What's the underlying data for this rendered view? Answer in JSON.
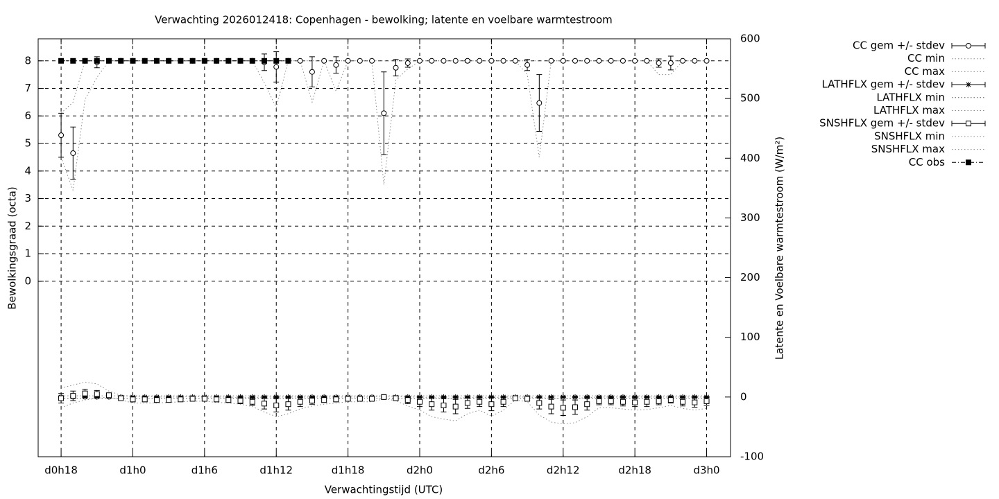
{
  "chart_data": {
    "type": "line",
    "title": "Verwachting 2026012418: Copenhagen - bewolking; latente en voelbare warmtestroom",
    "xlabel": "Verwachtingstijd (UTC)",
    "ylabel": "Bewolkingsgraad (octa)",
    "y2label": "Latente en Voelbare warmtestroom (W/m²)",
    "grid": true,
    "legend": "outside-right",
    "x": [
      18,
      19,
      20,
      21,
      22,
      23,
      24,
      25,
      26,
      27,
      28,
      29,
      30,
      31,
      32,
      33,
      34,
      35,
      36,
      37,
      38,
      39,
      40,
      41,
      42,
      43,
      44,
      45,
      46,
      47,
      48,
      49,
      50,
      51,
      52,
      53,
      54,
      55,
      56,
      57,
      58,
      59,
      60,
      61,
      62,
      63,
      64,
      65,
      66,
      67,
      68,
      69,
      70,
      71,
      72
    ],
    "xlim": [
      16.08,
      74
    ],
    "xticks": [
      {
        "value": 18,
        "label": "d0h18"
      },
      {
        "value": 24,
        "label": "d1h0"
      },
      {
        "value": 30,
        "label": "d1h6"
      },
      {
        "value": 36,
        "label": "d1h12"
      },
      {
        "value": 42,
        "label": "d1h18"
      },
      {
        "value": 48,
        "label": "d2h0"
      },
      {
        "value": 54,
        "label": "d2h6"
      },
      {
        "value": 60,
        "label": "d2h12"
      },
      {
        "value": 66,
        "label": "d2h18"
      },
      {
        "value": 72,
        "label": "d3h0"
      }
    ],
    "ylim": [
      -6.37,
      8.8
    ],
    "yticks": [
      0,
      1,
      2,
      3,
      4,
      5,
      6,
      7,
      8
    ],
    "y2lim": [
      -100,
      600
    ],
    "y2ticks": [
      -100,
      0,
      100,
      200,
      300,
      400,
      500,
      600
    ],
    "series": [
      {
        "name": "CC gem +/- stdev",
        "color": "#000000",
        "style": "errorbars",
        "marker": "circle",
        "values": [
          5.3,
          4.65,
          8,
          7.95,
          8,
          8,
          8,
          8,
          8,
          8,
          8,
          8,
          8,
          8,
          8,
          8,
          8,
          7.95,
          7.78,
          8,
          8,
          7.6,
          8,
          7.85,
          8,
          8,
          8,
          6.1,
          7.75,
          7.92,
          8,
          8,
          8,
          8,
          8,
          8,
          8,
          8,
          8,
          7.85,
          6.47,
          8,
          8,
          8,
          8,
          8,
          8,
          8,
          8,
          8,
          7.92,
          7.92,
          8,
          8,
          8
        ],
        "errors": [
          0.8,
          0.95,
          0,
          0.2,
          0,
          0,
          0,
          0,
          0,
          0,
          0,
          0,
          0,
          0,
          0,
          0,
          0,
          0.3,
          0.55,
          0,
          0,
          0.55,
          0,
          0.3,
          0,
          0,
          0,
          1.5,
          0.3,
          0.15,
          0,
          0,
          0,
          0,
          0.05,
          0,
          0,
          0,
          0,
          0.2,
          1.03,
          0,
          0,
          0,
          0,
          0,
          0,
          0,
          0,
          0,
          0.15,
          0.25,
          0,
          0,
          0
        ]
      },
      {
        "name": "CC min",
        "color": "#888888",
        "style": "dotted",
        "values": [
          4.5,
          3.3,
          6.6,
          7.4,
          8,
          8,
          8,
          8,
          8,
          8,
          8,
          8,
          8,
          8,
          8,
          8,
          8,
          7.2,
          6.3,
          8,
          8,
          6.5,
          8,
          6.9,
          8,
          8,
          8,
          3.5,
          7.3,
          7.7,
          8,
          8,
          8,
          8,
          8,
          8,
          8,
          8,
          8,
          7.5,
          4.5,
          8,
          8,
          8,
          8,
          8,
          8,
          8,
          8,
          8,
          7.5,
          7.5,
          8,
          8,
          8
        ]
      },
      {
        "name": "CC max",
        "color": "#888888",
        "style": "dotted",
        "values": [
          6.1,
          6.5,
          8,
          8,
          8,
          8,
          8,
          8,
          8,
          8,
          8,
          8,
          8,
          8,
          8,
          8,
          8,
          8,
          8,
          8,
          8,
          8,
          8,
          8,
          8,
          8,
          8,
          8,
          8,
          8,
          8,
          8,
          8,
          8,
          8,
          8,
          8,
          8,
          8,
          8,
          8,
          8,
          8,
          8,
          8,
          8,
          8,
          8,
          8,
          8,
          8,
          8,
          8,
          8,
          8
        ]
      },
      {
        "name": "LATHFLX gem +/- stdev",
        "color": "#000000",
        "style": "errorbars",
        "marker": "star",
        "axis": "y2",
        "values": [
          0,
          0,
          0,
          0,
          0,
          0,
          0,
          0,
          0,
          0,
          0,
          0,
          0,
          0,
          0,
          0,
          0,
          0,
          0,
          0,
          0,
          0,
          0,
          0,
          0,
          0,
          0,
          0,
          0,
          0,
          0,
          0,
          0,
          0,
          0,
          0,
          0,
          0,
          0,
          0,
          0,
          0,
          0,
          0,
          0,
          0,
          0,
          0,
          0,
          0,
          0,
          0,
          0,
          0,
          0
        ],
        "errors": [
          1,
          1,
          1,
          1,
          1,
          1,
          1,
          1,
          1,
          1,
          1,
          1,
          1,
          1,
          1,
          1,
          1,
          1,
          1,
          1,
          1,
          1,
          1,
          1,
          1,
          1,
          1,
          1,
          1,
          1,
          1,
          1,
          1,
          1,
          1,
          1,
          1,
          1,
          1,
          1,
          1,
          1,
          1,
          1,
          1,
          1,
          1,
          1,
          1,
          1,
          1,
          1,
          1,
          1,
          1
        ]
      },
      {
        "name": "LATHFLX min",
        "color": "#555555",
        "style": "dotted",
        "axis": "y2",
        "values": [
          -2,
          -2,
          -2,
          -2,
          -2,
          -2,
          -2,
          -2,
          -2,
          -2,
          -2,
          -2,
          -2,
          -2,
          -2,
          -2,
          -2,
          -2,
          -2,
          -2,
          -2,
          -2,
          -2,
          -2,
          -2,
          -2,
          -2,
          -2,
          -2,
          -2,
          -2,
          -2,
          -2,
          -2,
          -2,
          -2,
          -2,
          -2,
          -2,
          -2,
          -2,
          -2,
          -2,
          -2,
          -2,
          -2,
          -2,
          -2,
          -2,
          -2,
          -2,
          -2,
          -2,
          -2,
          -2
        ]
      },
      {
        "name": "LATHFLX max",
        "color": "#888888",
        "style": "dotted",
        "axis": "y2",
        "values": [
          2,
          2,
          2,
          2,
          2,
          2,
          2,
          2,
          2,
          2,
          2,
          2,
          2,
          2,
          2,
          2,
          2,
          2,
          2,
          2,
          2,
          2,
          2,
          2,
          2,
          2,
          2,
          2,
          2,
          2,
          2,
          2,
          2,
          2,
          2,
          2,
          2,
          2,
          2,
          2,
          2,
          2,
          2,
          2,
          2,
          2,
          2,
          2,
          2,
          2,
          2,
          2,
          2,
          2,
          2
        ]
      },
      {
        "name": "SNSHFLX gem +/- stdev",
        "color": "#000000",
        "style": "errorbars",
        "marker": "square",
        "axis": "y2",
        "values": [
          -2,
          2,
          6,
          5,
          3,
          -2,
          -4,
          -4,
          -5,
          -5,
          -4,
          -3,
          -3,
          -4,
          -5,
          -6,
          -8,
          -11,
          -14,
          -12,
          -8,
          -6,
          -5,
          -4,
          -3,
          -3,
          -3,
          0,
          -2,
          -5,
          -8,
          -12,
          -14,
          -16,
          -10,
          -8,
          -12,
          -8,
          -2,
          -3,
          -10,
          -16,
          -18,
          -17,
          -12,
          -7,
          -7,
          -8,
          -9,
          -8,
          -7,
          -5,
          -8,
          -9,
          -7
        ],
        "errors": [
          8,
          8,
          7,
          6,
          3,
          2,
          4,
          4,
          4,
          3,
          3,
          3,
          3,
          4,
          4,
          5,
          6,
          9,
          11,
          10,
          8,
          6,
          4,
          4,
          3,
          3,
          3,
          2,
          2,
          6,
          8,
          10,
          11,
          12,
          9,
          8,
          11,
          8,
          2,
          3,
          10,
          12,
          13,
          12,
          10,
          6,
          6,
          7,
          7,
          8,
          6,
          5,
          7,
          8,
          7
        ]
      },
      {
        "name": "SNSHFLX min",
        "color": "#888888",
        "style": "dotted",
        "axis": "y2",
        "values": [
          -18,
          -10,
          -5,
          -2,
          0,
          -5,
          -10,
          -10,
          -10,
          -9,
          -8,
          -7,
          -7,
          -9,
          -10,
          -12,
          -16,
          -25,
          -33,
          -28,
          -20,
          -15,
          -12,
          -10,
          -8,
          -8,
          -8,
          -3,
          -6,
          -15,
          -22,
          -33,
          -37,
          -40,
          -28,
          -22,
          -32,
          -22,
          -5,
          -8,
          -30,
          -42,
          -45,
          -43,
          -33,
          -18,
          -18,
          -20,
          -22,
          -21,
          -18,
          -14,
          -19,
          -22,
          -19
        ]
      },
      {
        "name": "SNSHFLX max",
        "color": "#888888",
        "style": "dotted",
        "axis": "y2",
        "values": [
          15,
          20,
          25,
          22,
          10,
          3,
          1,
          1,
          0,
          0,
          0,
          1,
          0,
          0,
          0,
          -1,
          -1,
          0,
          0,
          0,
          0,
          0,
          0,
          0,
          0,
          0,
          0,
          2,
          1,
          0,
          0,
          -1,
          -2,
          -2,
          -1,
          0,
          -1,
          0,
          0,
          0,
          -1,
          -2,
          -2,
          -2,
          -1,
          0,
          0,
          0,
          0,
          0,
          0,
          0,
          0,
          0,
          0
        ]
      },
      {
        "name": "CC obs",
        "color": "#000000",
        "style": "linespoints",
        "marker": "filled-square",
        "values": [
          8,
          8,
          8,
          8,
          8,
          8,
          8,
          8,
          8,
          8,
          8,
          8,
          8,
          8,
          8,
          8,
          8,
          8,
          8,
          8,
          null,
          null,
          null,
          null,
          null,
          null,
          null,
          null,
          null,
          null,
          null,
          null,
          null,
          null,
          null,
          null,
          null,
          null,
          null,
          null,
          null,
          null,
          null,
          null,
          null,
          null,
          null,
          null,
          null,
          null,
          null,
          null,
          null,
          null,
          null
        ]
      }
    ]
  }
}
